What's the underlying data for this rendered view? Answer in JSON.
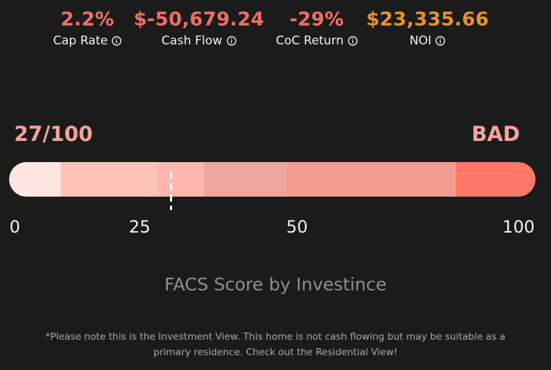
{
  "metrics": [
    {
      "value": "2.2%",
      "label": "Cap Rate",
      "color": "#ef6f62",
      "icon": "info-icon"
    },
    {
      "value": "$-50,679.24",
      "label": "Cash Flow",
      "color": "#ef6f62",
      "icon": "info-icon"
    },
    {
      "value": "-29%",
      "label": "CoC Return",
      "color": "#ef6f62",
      "icon": "info-icon"
    },
    {
      "value": "$23,335.66",
      "label": "NOI",
      "color": "#e8922c",
      "icon": "info-icon"
    }
  ],
  "score": {
    "text": "27/100",
    "value": 27,
    "max": 100,
    "rating": "BAD",
    "color": "#f4a39a"
  },
  "bar_colors": [
    "#ffe5e1",
    "#ffc2b9",
    "#ffb7ad",
    "#f0a59c",
    "#f29d8f",
    "#ff7768"
  ],
  "ticks": [
    "0",
    "25",
    "50",
    "100"
  ],
  "brand": "FACS Score by Investince",
  "note": "*Please note this is the Investment View. This home is not cash flowing but may be suitable as a primary residence. Check out the Residential View!"
}
